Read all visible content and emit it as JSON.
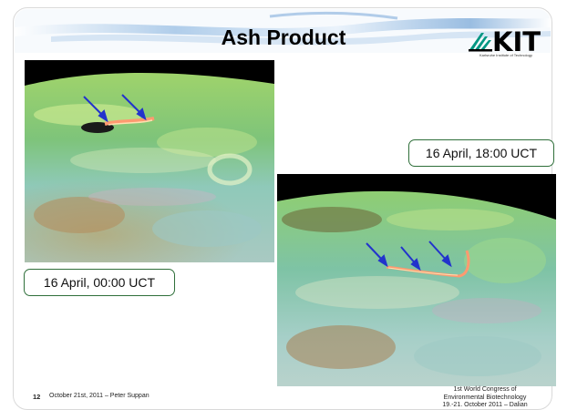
{
  "slide": {
    "title": "Ash Product",
    "logo_text": "KIT",
    "logo_subtitle": "Karlsruhe Institute of Technology",
    "label_top_right": "16 April, 18:00 UCT",
    "label_bottom_left": "16 April, 00:00 UCT",
    "slide_number": "12",
    "footer_date_author": "October 21st, 2011 – Peter Suppan",
    "footer_right": [
      "1st World Congress of",
      "Environmental Biotechnology",
      "19.-21. October 2011 – Dalian"
    ]
  },
  "colors": {
    "accent_green": "#2f6f3a",
    "arrow_blue": "#2233cc",
    "swoosh_blue": "#6f9fd0"
  },
  "icons": [
    "kit-logo-icon",
    "arrow-icon"
  ]
}
